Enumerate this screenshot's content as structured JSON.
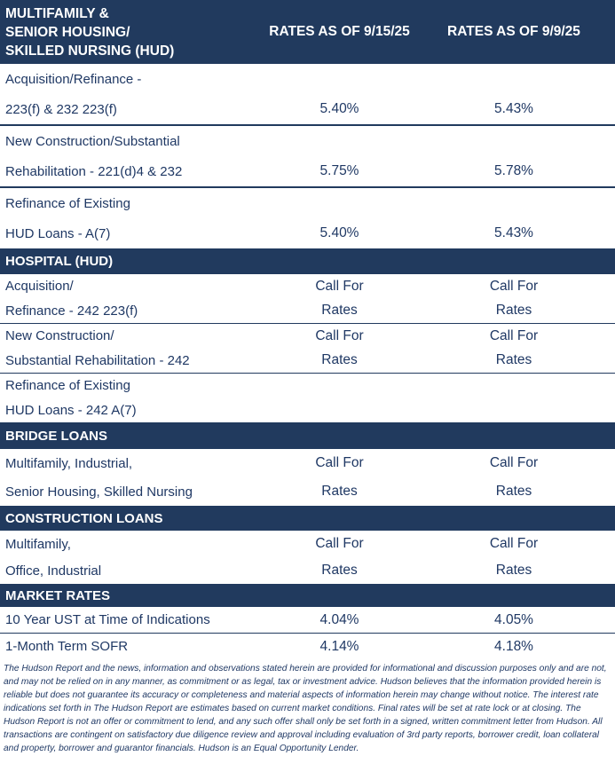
{
  "colors": {
    "band_navy": "#213a5e",
    "text_navy": "#1f3864",
    "header_text": "#ffffff",
    "background": "#ffffff"
  },
  "table": {
    "header": {
      "title_lines": [
        "MULTIFAMILY &",
        "SENIOR HOUSING/",
        "SKILLED NURSING (HUD)"
      ],
      "col1_label": "RATES AS OF 9/15/25",
      "col2_label": "RATES AS OF 9/9/25"
    },
    "groups": [
      {
        "title": "",
        "rows": [
          {
            "label": [
              "Acquisition/Refinance -",
              "223(f) & 232 223(f)"
            ],
            "col1": [
              "",
              "5.40%"
            ],
            "col2": [
              "",
              "5.43%"
            ]
          },
          {
            "label": [
              "New Construction/Substantial",
              "Rehabilitation - 221(d)4 & 232"
            ],
            "col1": [
              "",
              "5.75%"
            ],
            "col2": [
              "",
              "5.78%"
            ]
          },
          {
            "label": [
              "Refinance of Existing",
              "HUD Loans - A(7)"
            ],
            "col1": [
              "",
              "5.40%"
            ],
            "col2": [
              "",
              "5.43%"
            ]
          }
        ]
      },
      {
        "title": "HOSPITAL (HUD)",
        "rows": [
          {
            "label": [
              "Acquisition/",
              "Refinance - 242 223(f)"
            ],
            "col1": [
              "Call For",
              "Rates"
            ],
            "col2": [
              "Call For",
              "Rates"
            ]
          },
          {
            "label": [
              "New Construction/",
              "Substantial Rehabilitation - 242"
            ],
            "col1": [
              "Call For",
              "Rates"
            ],
            "col2": [
              "Call For",
              "Rates"
            ]
          },
          {
            "label": [
              "Refinance of Existing",
              "HUD Loans - 242 A(7)"
            ],
            "col1": [
              "",
              ""
            ],
            "col2": [
              "",
              ""
            ]
          }
        ]
      },
      {
        "title": "BRIDGE LOANS",
        "rows": [
          {
            "label": [
              "Multifamily, Industrial,",
              "Senior Housing, Skilled Nursing"
            ],
            "col1": [
              "Call For",
              "Rates"
            ],
            "col2": [
              "Call For",
              "Rates"
            ]
          }
        ]
      },
      {
        "title": "CONSTRUCTION LOANS",
        "rows": [
          {
            "label": [
              "Multifamily,",
              "Office, Industrial"
            ],
            "col1": [
              "Call For",
              "Rates"
            ],
            "col2": [
              "Call For",
              "Rates"
            ]
          }
        ]
      },
      {
        "title": "MARKET RATES",
        "rows": [
          {
            "label": [
              "10 Year UST at Time of Indications"
            ],
            "col1": [
              "4.04%"
            ],
            "col2": [
              "4.05%"
            ]
          },
          {
            "label": [
              "1-Month Term SOFR"
            ],
            "col1": [
              "4.14%"
            ],
            "col2": [
              "4.18%"
            ]
          }
        ]
      }
    ]
  },
  "disclaimer": "The Hudson Report and the news, information and observations stated herein are provided for informational and discussion purposes only and are not, and may not be relied on in any manner, as commitment or as legal, tax or investment advice. Hudson believes that the information provided herein is reliable but does not guarantee its accuracy or completeness and material aspects of information herein may change without notice. The interest rate indications set forth in The Hudson Report are estimates based on current market conditions. Final rates will be set at rate lock or at closing. The Hudson Report is not an offer or commitment to lend, and any such offer shall only be set forth in a signed, written commitment letter from Hudson. All transactions are contingent on satisfactory due diligence review and approval including evaluation of 3rd party reports, borrower credit, loan collateral and property, borrower and guarantor financials. Hudson is an Equal Opportunity Lender."
}
